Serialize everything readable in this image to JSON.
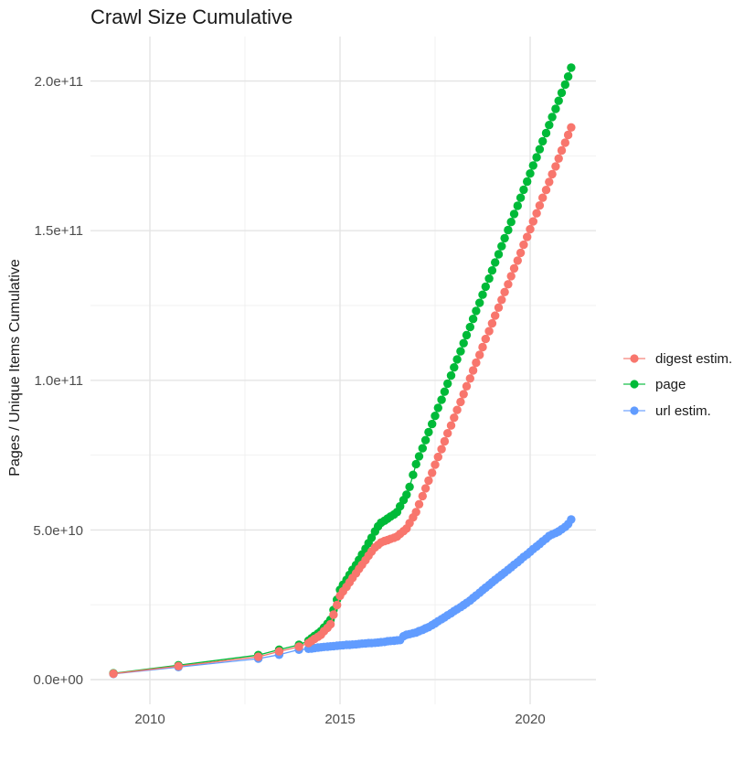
{
  "chart_data": {
    "type": "line",
    "title": "Crawl Size Cumulative",
    "xlabel": "",
    "ylabel": "Pages / Unique Items Cumulative",
    "legend_position": "right",
    "grid": true,
    "marker": "point",
    "x_tick_labels": [
      "2010",
      "2015",
      "2020"
    ],
    "y_tick_labels": [
      "0.0e+00",
      "5.0e+10",
      "1.0e+11",
      "1.5e+11",
      "2.0e+11"
    ],
    "x_ticks": [
      2010,
      2015,
      2020
    ],
    "y_ticks": [
      0,
      50000000000.0,
      100000000000.0,
      150000000000.0,
      200000000000.0
    ],
    "x_minor_ticks": [
      2012.5,
      2017.5
    ],
    "y_minor_ticks": [
      25000000000.0,
      75000000000.0,
      125000000000.0,
      175000000000.0
    ],
    "xlim": [
      2008.45,
      2021.73
    ],
    "ylim": [
      0,
      214700000000.0
    ],
    "x": [
      2009.04,
      2010.75,
      2012.85,
      2013.4,
      2013.92,
      2014.17,
      2014.25,
      2014.33,
      2014.42,
      2014.5,
      2014.58,
      2014.67,
      2014.75,
      2014.83,
      2014.92,
      2015.0,
      2015.08,
      2015.17,
      2015.25,
      2015.33,
      2015.42,
      2015.5,
      2015.58,
      2015.67,
      2015.75,
      2015.83,
      2015.92,
      2016.0,
      2016.08,
      2016.17,
      2016.25,
      2016.33,
      2016.42,
      2016.5,
      2016.58,
      2016.67,
      2016.75,
      2016.83,
      2016.92,
      2017.0,
      2017.08,
      2017.17,
      2017.25,
      2017.33,
      2017.42,
      2017.5,
      2017.58,
      2017.67,
      2017.75,
      2017.83,
      2017.92,
      2018.0,
      2018.08,
      2018.17,
      2018.25,
      2018.33,
      2018.42,
      2018.5,
      2018.58,
      2018.67,
      2018.75,
      2018.83,
      2018.92,
      2019.0,
      2019.08,
      2019.17,
      2019.25,
      2019.33,
      2019.42,
      2019.5,
      2019.58,
      2019.67,
      2019.75,
      2019.83,
      2019.92,
      2020.0,
      2020.08,
      2020.17,
      2020.25,
      2020.33,
      2020.42,
      2020.5,
      2020.58,
      2020.67,
      2020.75,
      2020.83,
      2020.92,
      2021.0,
      2021.08
    ],
    "series": [
      {
        "name": "digest estim.",
        "color": "#F8766D",
        "values": [
          2000000000.0,
          4500000000.0,
          7600000000.0,
          9400000000.0,
          11000000000.0,
          12200000000.0,
          12900000000.0,
          13600000000.0,
          14300000000.0,
          15000000000.0,
          16200000000.0,
          17300000000.0,
          18500000000.0,
          21700000000.0,
          24900000000.0,
          28000000000.0,
          29500000000.0,
          31000000000.0,
          32500000000.0,
          34000000000.0,
          35500000000.0,
          37000000000.0,
          38400000000.0,
          39900000000.0,
          41400000000.0,
          42800000000.0,
          44200000000.0,
          45000000000.0,
          45800000000.0,
          46300000000.0,
          46600000000.0,
          47000000000.0,
          47400000000.0,
          47800000000.0,
          48700000000.0,
          49600000000.0,
          50500000000.0,
          52300000000.0,
          54200000000.0,
          56000000000.0,
          58600000000.0,
          61300000000.0,
          63900000000.0,
          66500000000.0,
          69100000000.0,
          71800000000.0,
          74400000000.0,
          77000000000.0,
          79600000000.0,
          82300000000.0,
          84900000000.0,
          87500000000.0,
          90100000000.0,
          92800000000.0,
          95400000000.0,
          98000000000.0,
          100600000000.0,
          103300000000.0,
          105900000000.0,
          108500000000.0,
          111100000000.0,
          113800000000.0,
          116400000000.0,
          119000000000.0,
          121600000000.0,
          124300000000.0,
          126900000000.0,
          129500000000.0,
          132100000000.0,
          134800000000.0,
          137400000000.0,
          140000000000.0,
          142600000000.0,
          145300000000.0,
          147900000000.0,
          150500000000.0,
          153100000000.0,
          155800000000.0,
          158400000000.0,
          161000000000.0,
          163600000000.0,
          166300000000.0,
          168900000000.0,
          171500000000.0,
          174100000000.0,
          176800000000.0,
          179400000000.0,
          182000000000.0,
          184500000000.0
        ]
      },
      {
        "name": "page",
        "color": "#00BA38",
        "values": [
          2100000000.0,
          4800000000.0,
          8200000000.0,
          10000000000.0,
          11600000000.0,
          13000000000.0,
          13800000000.0,
          14600000000.0,
          15400000000.0,
          16200000000.0,
          17400000000.0,
          18700000000.0,
          20000000000.0,
          23300000000.0,
          26700000000.0,
          30000000000.0,
          31700000000.0,
          33300000000.0,
          35000000000.0,
          36700000000.0,
          38300000000.0,
          40000000000.0,
          41800000000.0,
          43700000000.0,
          45600000000.0,
          47400000000.0,
          49500000000.0,
          51200000000.0,
          52400000000.0,
          53100000000.0,
          53800000000.0,
          54500000000.0,
          55200000000.0,
          56000000000.0,
          57900000000.0,
          60000000000.0,
          61800000000.0,
          64400000000.0,
          68400000000.0,
          72000000000.0,
          74600000000.0,
          77300000000.0,
          80000000000.0,
          82700000000.0,
          85400000000.0,
          88100000000.0,
          90800000000.0,
          93500000000.0,
          96200000000.0,
          98900000000.0,
          101600000000.0,
          104300000000.0,
          107000000000.0,
          109700000000.0,
          112400000000.0,
          115100000000.0,
          117800000000.0,
          120500000000.0,
          123200000000.0,
          125900000000.0,
          128600000000.0,
          131300000000.0,
          134000000000.0,
          136700000000.0,
          139400000000.0,
          142100000000.0,
          144800000000.0,
          147500000000.0,
          150200000000.0,
          152900000000.0,
          155600000000.0,
          158300000000.0,
          161000000000.0,
          163700000000.0,
          166400000000.0,
          169100000000.0,
          171800000000.0,
          174500000000.0,
          177200000000.0,
          179900000000.0,
          182600000000.0,
          185300000000.0,
          188000000000.0,
          190700000000.0,
          193400000000.0,
          196100000000.0,
          198800000000.0,
          201500000000.0,
          204500000000.0
        ]
      },
      {
        "name": "url estim.",
        "color": "#619CFF",
        "values": [
          1900000000.0,
          4200000000.0,
          7000000000.0,
          8300000000.0,
          10000000000.0,
          10300000000.0,
          10400000000.0,
          10500000000.0,
          10700000000.0,
          10800000000.0,
          10900000000.0,
          11000000000.0,
          11100000000.0,
          11200000000.0,
          11300000000.0,
          11400000000.0,
          11500000000.0,
          11600000000.0,
          11600000000.0,
          11700000000.0,
          11800000000.0,
          11900000000.0,
          12000000000.0,
          12100000000.0,
          12200000000.0,
          12200000000.0,
          12300000000.0,
          12400000000.0,
          12500000000.0,
          12600000000.0,
          12800000000.0,
          12900000000.0,
          13000000000.0,
          13100000000.0,
          13200000000.0,
          14500000000.0,
          15000000000.0,
          15200000000.0,
          15500000000.0,
          15700000000.0,
          16200000000.0,
          16600000000.0,
          17100000000.0,
          17500000000.0,
          18200000000.0,
          18800000000.0,
          19500000000.0,
          20200000000.0,
          20800000000.0,
          21500000000.0,
          22200000000.0,
          22900000000.0,
          23500000000.0,
          24200000000.0,
          24900000000.0,
          25600000000.0,
          26400000000.0,
          27300000000.0,
          28100000000.0,
          29000000000.0,
          29900000000.0,
          30700000000.0,
          31600000000.0,
          32500000000.0,
          33300000000.0,
          34200000000.0,
          35000000000.0,
          35800000000.0,
          36700000000.0,
          37500000000.0,
          38400000000.0,
          39200000000.0,
          40100000000.0,
          41000000000.0,
          41800000000.0,
          42700000000.0,
          43600000000.0,
          44500000000.0,
          45300000000.0,
          46200000000.0,
          47100000000.0,
          48000000000.0,
          48500000000.0,
          49000000000.0,
          49500000000.0,
          50200000000.0,
          51000000000.0,
          52000000000.0,
          53500000000.0
        ]
      }
    ]
  },
  "style": {
    "major_grid_color": "#e4e4e4",
    "minor_grid_color": "#f0f0f0",
    "background": "#ffffff"
  }
}
